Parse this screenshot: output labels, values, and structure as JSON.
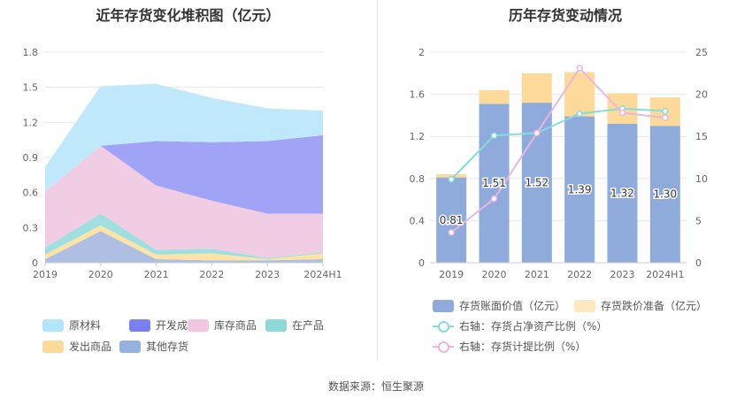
{
  "left_chart": {
    "title": "近年存货变化堆积图（亿元）",
    "chart_data": {
      "type": "area",
      "stacked": true,
      "categories": [
        "2019",
        "2020",
        "2021",
        "2022",
        "2023",
        "2024H1"
      ],
      "ylim": [
        0,
        1.8
      ],
      "yticks": [
        "0",
        "0.3",
        "0.6",
        "0.9",
        "1.2",
        "1.5",
        "1.8"
      ],
      "series": [
        {
          "name": "其他存货",
          "color": "#aebfe3",
          "values": [
            0.03,
            0.27,
            0.03,
            0.02,
            0.02,
            0.03
          ]
        },
        {
          "name": "发出商品",
          "color": "#fde3a6",
          "values": [
            0.04,
            0.05,
            0.04,
            0.06,
            0.01,
            0.05
          ]
        },
        {
          "name": "在产品",
          "color": "#9fdfe0",
          "values": [
            0.06,
            0.1,
            0.04,
            0.04,
            0.01,
            0.01
          ]
        },
        {
          "name": "库存商品",
          "color": "#f0cde3",
          "values": [
            0.48,
            0.58,
            0.55,
            0.41,
            0.38,
            0.33
          ]
        },
        {
          "name": "开发成本",
          "color": "#a0a3f6",
          "values": [
            0.0,
            0.0,
            0.38,
            0.5,
            0.62,
            0.67
          ]
        },
        {
          "name": "原材料",
          "color": "#bfe8fb",
          "values": [
            0.21,
            0.51,
            0.49,
            0.38,
            0.28,
            0.21
          ]
        }
      ],
      "legend_position": "bottom"
    },
    "legend": [
      {
        "label": "原材料",
        "color": "#b2e4fb"
      },
      {
        "label": "开发成本",
        "color": "#7b7ff4"
      },
      {
        "label": "库存商品",
        "color": "#f1c6e0"
      },
      {
        "label": "在产品",
        "color": "#8dd8d9"
      },
      {
        "label": "发出商品",
        "color": "#fdd99a"
      },
      {
        "label": "其他存货",
        "color": "#95b1df"
      }
    ]
  },
  "right_chart": {
    "title": "历年存货变动情况",
    "chart_data": {
      "type": "bar",
      "stacked": true,
      "categories": [
        "2019",
        "2020",
        "2021",
        "2022",
        "2023",
        "2024H1"
      ],
      "ylim": [
        0,
        2
      ],
      "yticks": [
        "0",
        "0.4",
        "0.8",
        "1.2",
        "1.6",
        "2"
      ],
      "y2lim": [
        0,
        25
      ],
      "y2ticks": [
        "0",
        "5",
        "10",
        "15",
        "20",
        "25"
      ],
      "bar_series": [
        {
          "name": "存货账面价值（亿元）",
          "color": "#8eabdc",
          "values": [
            0.81,
            1.51,
            1.52,
            1.39,
            1.32,
            1.3
          ]
        },
        {
          "name": "存货跌价准备（亿元）",
          "color": "#fdd99a",
          "values": [
            0.03,
            0.13,
            0.28,
            0.42,
            0.29,
            0.27
          ]
        }
      ],
      "data_labels": [
        "0.81",
        "1.51",
        "1.52",
        "1.39",
        "1.32",
        "1.30"
      ],
      "line_series": [
        {
          "name": "右轴：存货占净资产比例（%）",
          "color": "#86dcdc",
          "values": [
            9.9,
            15.1,
            15.4,
            17.7,
            18.3,
            18.0
          ]
        },
        {
          "name": "右轴：存货计提比例（%）",
          "color": "#eab6dc",
          "values": [
            3.6,
            7.6,
            15.4,
            23.1,
            17.8,
            17.2
          ]
        }
      ],
      "legend_position": "bottom"
    },
    "legend": {
      "bar1": {
        "label": "存货账面价值（亿元）",
        "color": "#8eabdc"
      },
      "bar2": {
        "label": "存货跌价准备（亿元）",
        "color": "#fde8c2"
      },
      "line1": {
        "label": "右轴：存货占净资产比例（%）",
        "color": "#86dcdc"
      },
      "line2": {
        "label": "右轴：存货计提比例（%）",
        "color": "#eab6dc"
      }
    }
  },
  "footer": "数据来源：恒生聚源"
}
